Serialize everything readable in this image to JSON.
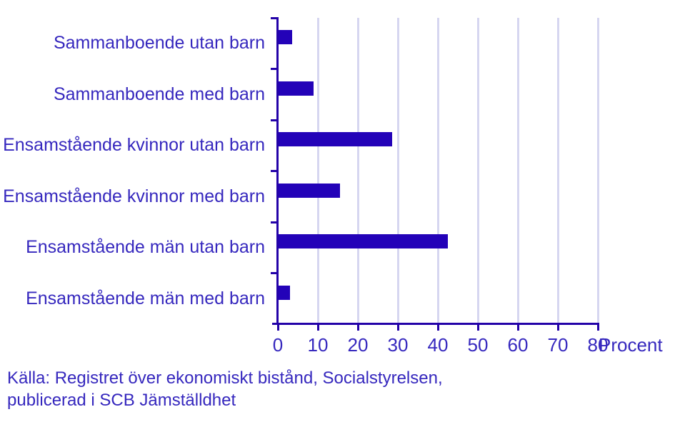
{
  "chart_data": {
    "type": "bar",
    "orientation": "horizontal",
    "title": "",
    "categories": [
      "Sammanboende utan barn",
      "Sammanboende med barn",
      "Ensamstående kvinnor utan barn",
      "Ensamstående kvinnor med barn",
      "Ensamstående män utan barn",
      "Ensamstående män med barn"
    ],
    "values": [
      3.5,
      9,
      28.5,
      15.5,
      42.5,
      3
    ],
    "xlabel": "Procent",
    "ylabel": "",
    "xlim": [
      0,
      80
    ],
    "xticks": [
      0,
      10,
      20,
      30,
      40,
      50,
      60,
      70,
      80
    ],
    "grid": "vertical",
    "legend": "none",
    "bar_color": "#2302b8",
    "axis_color": "#2302a8",
    "text_color": "#3628be",
    "gridline_color": "#d6d6f0",
    "source": [
      "Källa: Registret över ekonomiskt bistånd, Socialstyrelsen,",
      "publicerad i SCB Jämställdhet"
    ]
  }
}
